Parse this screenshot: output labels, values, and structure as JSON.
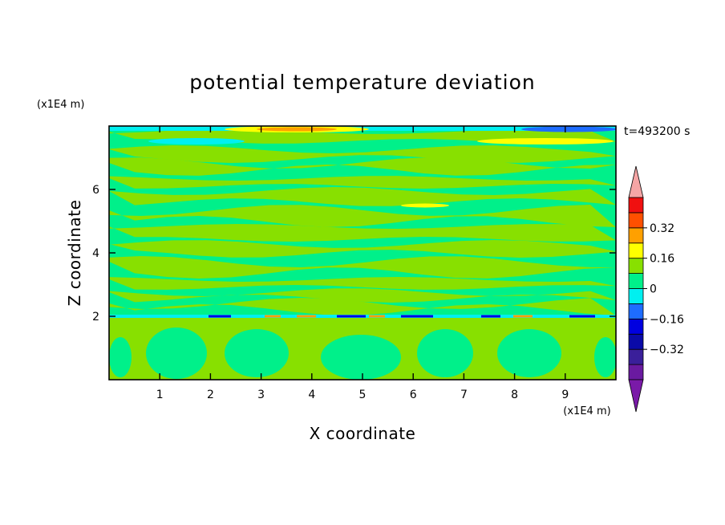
{
  "chart_data": {
    "type": "heatmap",
    "title": "potential temperature deviation",
    "time_label": "t=493200 s",
    "xlabel": "X coordinate",
    "ylabel": "Z coordinate",
    "x_unit": "(x1E4 m)",
    "y_unit": "(x1E4 m)",
    "xlim": [
      0,
      10
    ],
    "ylim": [
      0,
      8
    ],
    "x_ticks": [
      {
        "value": 1,
        "label": "1"
      },
      {
        "value": 2,
        "label": "2"
      },
      {
        "value": 3,
        "label": "3"
      },
      {
        "value": 4,
        "label": "4"
      },
      {
        "value": 5,
        "label": "5"
      },
      {
        "value": 6,
        "label": "6"
      },
      {
        "value": 7,
        "label": "7"
      },
      {
        "value": 8,
        "label": "8"
      },
      {
        "value": 9,
        "label": "9"
      }
    ],
    "y_ticks": [
      {
        "value": 2,
        "label": "2"
      },
      {
        "value": 4,
        "label": "4"
      },
      {
        "value": 6,
        "label": "6"
      }
    ],
    "colorbar": {
      "min": -0.48,
      "max": 0.48,
      "levels": [
        {
          "from": -0.48,
          "to": -0.4,
          "color": "#6a1aa0"
        },
        {
          "from": -0.4,
          "to": -0.32,
          "color": "#3a1f9a"
        },
        {
          "from": -0.32,
          "to": -0.24,
          "color": "#0a0aa8"
        },
        {
          "from": -0.24,
          "to": -0.16,
          "color": "#0000e0"
        },
        {
          "from": -0.16,
          "to": -0.08,
          "color": "#1e6cff"
        },
        {
          "from": -0.08,
          "to": 0.0,
          "color": "#00f0f0"
        },
        {
          "from": 0.0,
          "to": 0.08,
          "color": "#00f08a"
        },
        {
          "from": 0.08,
          "to": 0.16,
          "color": "#88e000"
        },
        {
          "from": 0.16,
          "to": 0.24,
          "color": "#ffff00"
        },
        {
          "from": 0.24,
          "to": 0.32,
          "color": "#ffa000"
        },
        {
          "from": 0.32,
          "to": 0.4,
          "color": "#ff5000"
        },
        {
          "from": 0.4,
          "to": 0.48,
          "color": "#f01010"
        }
      ],
      "under_color": "#7a1aa8",
      "over_color": "#f5a5a5",
      "tick_labels": [
        {
          "value": 0.32,
          "label": "0.32"
        },
        {
          "value": 0.16,
          "label": "0.16"
        },
        {
          "value": 0,
          "label": "0"
        },
        {
          "value": -0.16,
          "label": "−0.16"
        },
        {
          "value": -0.32,
          "label": "−0.32"
        }
      ]
    },
    "field_colors": {
      "background": "#00f08a",
      "positive": "#88e000",
      "yellow": "#ffff00",
      "orange": "#ffa000",
      "cyan": "#00f0f0",
      "blue": "#1e6cff",
      "darkblue": "#0000e0"
    }
  }
}
